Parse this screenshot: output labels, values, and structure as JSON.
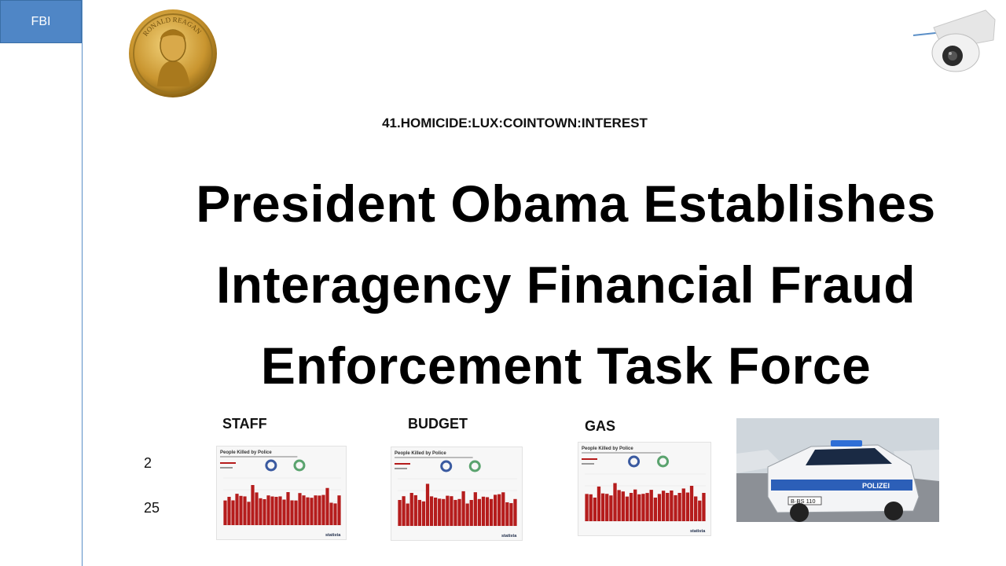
{
  "tab": {
    "label": "FBI"
  },
  "subtitle": "41.HOMICIDE:LUX:COINTOWN:INTEREST",
  "headline": {
    "line1": "President Obama Establishes",
    "line2": "Interagency Financial Fraud",
    "line3": "Enforcement Task Force"
  },
  "sections": [
    {
      "label": "STAFF"
    },
    {
      "label": "BUDGET"
    },
    {
      "label": "GAS"
    }
  ],
  "numbers": [
    "2",
    "25"
  ],
  "thumbnail": {
    "title": "People Killed by Police",
    "brand": "statista",
    "bar_color": "#b51c1c"
  },
  "coin": {
    "inscription": "RONALD REAGAN"
  },
  "car": {
    "plate": "B·BS 110",
    "door_text": "POLIZEI"
  }
}
